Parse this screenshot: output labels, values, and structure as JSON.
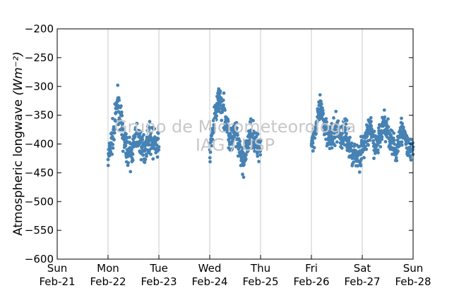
{
  "chart_data": {
    "type": "scatter",
    "title": "",
    "ylabel": "Atmospheric longwave",
    "ylabel_unit": "(Wm⁻²)",
    "ylim": [
      -600,
      -200
    ],
    "yticks": [
      -200,
      -250,
      -300,
      -350,
      -400,
      -450,
      -500,
      -550,
      -600
    ],
    "xlim": [
      "2010-02-21",
      "2010-02-28"
    ],
    "xticks": [
      {
        "day": "Sun",
        "date": "Feb-21"
      },
      {
        "day": "Mon",
        "date": "Feb-22"
      },
      {
        "day": "Tue",
        "date": "Feb-23"
      },
      {
        "day": "Wed",
        "date": "Feb-24"
      },
      {
        "day": "Thu",
        "date": "Feb-25"
      },
      {
        "day": "Fri",
        "date": "Feb-26"
      },
      {
        "day": "Sat",
        "date": "Feb-27"
      },
      {
        "day": "Sun",
        "date": "Feb-28"
      }
    ],
    "grid": "vertical",
    "marker_color": "#4682b4",
    "watermark": [
      "Grupo de Micrometeorologia",
      "IAG / USP"
    ],
    "series": [
      {
        "points": [
          [
            "2010-02-22T00:00",
            -427
          ],
          [
            "2010-02-22T01:30",
            -398
          ],
          [
            "2010-02-22T03:00",
            -375
          ],
          [
            "2010-02-22T04:00",
            -335
          ],
          [
            "2010-02-22T04:30",
            -323
          ],
          [
            "2010-02-22T06:00",
            -360
          ],
          [
            "2010-02-22T07:30",
            -392
          ],
          [
            "2010-02-22T09:00",
            -410
          ],
          [
            "2010-02-22T10:30",
            -418
          ],
          [
            "2010-02-22T12:00",
            -405
          ],
          [
            "2010-02-22T13:30",
            -382
          ],
          [
            "2010-02-22T15:00",
            -395
          ],
          [
            "2010-02-22T16:30",
            -412
          ],
          [
            "2010-02-22T18:00",
            -400
          ],
          [
            "2010-02-22T19:30",
            -388
          ],
          [
            "2010-02-22T21:00",
            -396
          ],
          [
            "2010-02-22T22:30",
            -401
          ],
          [
            "2010-02-23T00:00",
            -405
          ],
          [
            "2010-02-24T00:00",
            -410
          ],
          [
            "2010-02-24T01:30",
            -375
          ],
          [
            "2010-02-24T03:00",
            -345
          ],
          [
            "2010-02-24T04:30",
            -317
          ],
          [
            "2010-02-24T06:00",
            -338
          ],
          [
            "2010-02-24T07:30",
            -353
          ],
          [
            "2010-02-24T09:00",
            -385
          ],
          [
            "2010-02-24T10:30",
            -396
          ],
          [
            "2010-02-24T12:00",
            -378
          ],
          [
            "2010-02-24T13:30",
            -402
          ],
          [
            "2010-02-24T15:00",
            -425
          ],
          [
            "2010-02-24T16:30",
            -430
          ],
          [
            "2010-02-24T18:00",
            -398
          ],
          [
            "2010-02-24T19:30",
            -376
          ],
          [
            "2010-02-24T21:00",
            -390
          ],
          [
            "2010-02-24T22:30",
            -410
          ],
          [
            "2010-02-25T00:00",
            -395
          ],
          [
            "2010-02-26T00:00",
            -400
          ],
          [
            "2010-02-26T02:00",
            -372
          ],
          [
            "2010-02-26T04:00",
            -340
          ],
          [
            "2010-02-26T06:00",
            -365
          ],
          [
            "2010-02-26T08:00",
            -382
          ],
          [
            "2010-02-26T10:00",
            -395
          ],
          [
            "2010-02-26T12:00",
            -368
          ],
          [
            "2010-02-26T14:00",
            -392
          ],
          [
            "2010-02-26T16:00",
            -375
          ],
          [
            "2010-02-26T18:00",
            -408
          ],
          [
            "2010-02-26T20:00",
            -415
          ],
          [
            "2010-02-26T22:00",
            -420
          ],
          [
            "2010-02-27T00:00",
            -410
          ],
          [
            "2010-02-27T02:00",
            -388
          ],
          [
            "2010-02-27T04:00",
            -372
          ],
          [
            "2010-02-27T06:00",
            -405
          ],
          [
            "2010-02-27T08:00",
            -392
          ],
          [
            "2010-02-27T10:00",
            -362
          ],
          [
            "2010-02-27T12:00",
            -378
          ],
          [
            "2010-02-27T14:00",
            -398
          ],
          [
            "2010-02-27T16:00",
            -418
          ],
          [
            "2010-02-27T18:00",
            -372
          ],
          [
            "2010-02-27T20:00",
            -390
          ],
          [
            "2010-02-27T22:00",
            -412
          ],
          [
            "2010-02-28T00:00",
            -405
          ]
        ],
        "spread": 12
      }
    ]
  }
}
